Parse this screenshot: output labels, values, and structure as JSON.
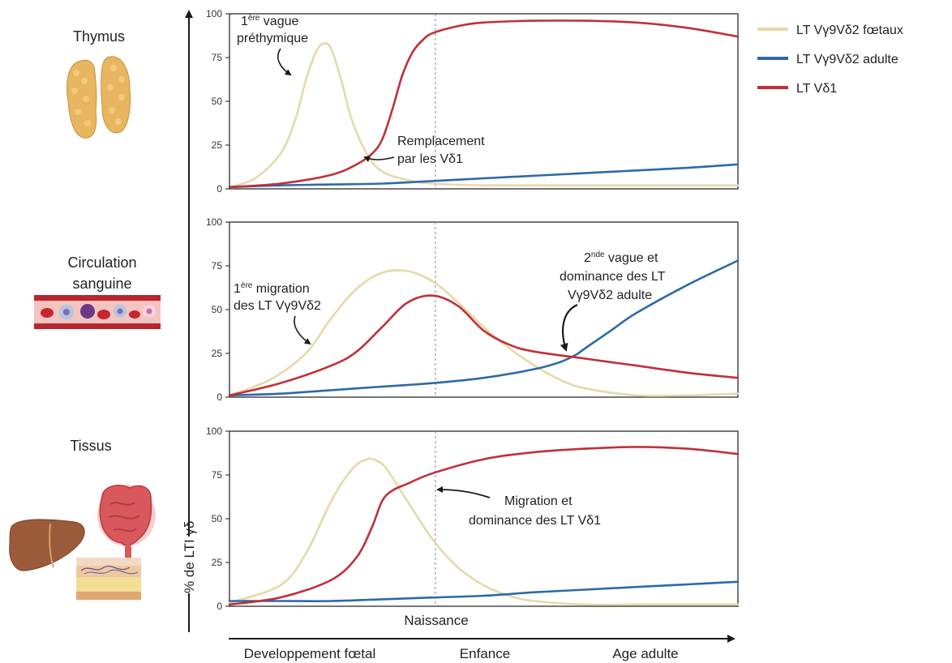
{
  "colors": {
    "foetal": "#e6d9a8",
    "adult": "#2d6aa8",
    "vd1": "#c0303a",
    "axis": "#1a1a1a",
    "arrow": "#1a1a1a"
  },
  "icons": [
    "thymus-icon",
    "blood-vessel-icon",
    "liver-icon",
    "intestine-icon",
    "skin-icon"
  ],
  "tissues": {
    "thymus": "Thymus",
    "blood_line1": "Circulation",
    "blood_line2": "sanguine",
    "tissue": "Tissus"
  },
  "legend": {
    "foetal": "LT Vγ9Vδ2 fœtaux",
    "adult": "LT Vγ9Vδ2 adulte",
    "vd1": "LT Vδ1"
  },
  "yaxis_label": "% de LTI γδ",
  "naissance": "Naissance",
  "stages": [
    "Developpement fœtal",
    "Enfance",
    "Age adulte"
  ],
  "annotations": {
    "p1_wave_sup": "ère",
    "p1_wave_pre": "1",
    "p1_wave_post": " vague",
    "p1_wave_line2": "préthymique",
    "p1_replace_line1": "Remplacement",
    "p1_replace_line2": "par les Vδ1",
    "p2_migr_pre": "1",
    "p2_migr_sup": "ère",
    "p2_migr_post": " migration",
    "p2_migr_line2": "des LT Vγ9Vδ2",
    "p2_second_pre": "2",
    "p2_second_sup": "nde",
    "p2_second_post": " vague et",
    "p2_second_line2": "dominance des LT",
    "p2_second_line3": "Vγ9Vδ2 adulte",
    "p3_migr_line1": "Migration et",
    "p3_migr_line2": "dominance des LT Vδ1"
  },
  "chart_data": [
    {
      "type": "line",
      "panel": "Thymus",
      "ylim": [
        0,
        100
      ],
      "yticks": [
        0,
        25,
        50,
        75,
        100
      ],
      "xlim": [
        0,
        100
      ],
      "series": [
        {
          "name": "LT Vγ9Vδ2 fœtaux",
          "color": "#e6d9a8",
          "x": [
            0,
            5,
            10,
            13,
            15,
            17,
            18.5,
            20,
            22,
            24,
            27,
            30,
            35,
            40,
            50,
            70,
            100
          ],
          "y": [
            1,
            6,
            20,
            40,
            62,
            78,
            83,
            80,
            62,
            40,
            20,
            10,
            5,
            3,
            2,
            2,
            2
          ]
        },
        {
          "name": "LT Vγ9Vδ2 adulte",
          "color": "#2d6aa8",
          "x": [
            0,
            10,
            20,
            30,
            40,
            50,
            60,
            70,
            80,
            90,
            100
          ],
          "y": [
            1,
            2,
            2.5,
            3,
            4.5,
            6,
            7.5,
            9,
            10.5,
            12,
            14
          ]
        },
        {
          "name": "LT Vδ1",
          "color": "#c0303a",
          "x": [
            0,
            10,
            20,
            25,
            28,
            30,
            32,
            34,
            36,
            38,
            40,
            45,
            50,
            60,
            70,
            80,
            90,
            100
          ],
          "y": [
            1,
            3,
            8,
            14,
            20,
            28,
            45,
            65,
            78,
            85,
            89,
            93,
            95,
            96,
            96,
            95,
            92,
            87
          ]
        }
      ]
    },
    {
      "type": "line",
      "panel": "Circulation sanguine",
      "ylim": [
        0,
        100
      ],
      "yticks": [
        0,
        25,
        50,
        75,
        100
      ],
      "xlim": [
        0,
        100
      ],
      "series": [
        {
          "name": "LT Vγ9Vδ2 fœtaux",
          "color": "#e6d9a8",
          "x": [
            0,
            8,
            15,
            20,
            25,
            30,
            35,
            40,
            45,
            50,
            55,
            60,
            65,
            70,
            80,
            90,
            100
          ],
          "y": [
            1,
            10,
            25,
            45,
            62,
            71,
            72,
            66,
            54,
            40,
            28,
            18,
            10,
            5,
            1,
            1,
            2
          ]
        },
        {
          "name": "LT Vγ9Vδ2 adulte",
          "color": "#2d6aa8",
          "x": [
            0,
            10,
            20,
            30,
            40,
            50,
            60,
            65,
            68,
            70,
            75,
            80,
            90,
            100
          ],
          "y": [
            1,
            2,
            4,
            6,
            8,
            11,
            16,
            20,
            24,
            28,
            38,
            48,
            64,
            78
          ]
        },
        {
          "name": "LT Vδ1",
          "color": "#c0303a",
          "x": [
            0,
            10,
            20,
            25,
            30,
            35,
            40,
            45,
            50,
            55,
            60,
            70,
            80,
            90,
            100
          ],
          "y": [
            1,
            8,
            18,
            26,
            40,
            54,
            58,
            52,
            38,
            30,
            26,
            22,
            18,
            14,
            11
          ]
        }
      ]
    },
    {
      "type": "line",
      "panel": "Tissus",
      "ylim": [
        0,
        100
      ],
      "yticks": [
        0,
        25,
        50,
        75,
        100
      ],
      "xlim": [
        0,
        100
      ],
      "series": [
        {
          "name": "LT Vγ9Vδ2 fœtaux",
          "color": "#e6d9a8",
          "x": [
            0,
            10,
            15,
            20,
            24,
            27,
            29,
            31,
            35,
            40,
            45,
            50,
            55,
            60,
            70,
            80,
            100
          ],
          "y": [
            2,
            12,
            30,
            60,
            78,
            84,
            83,
            78,
            60,
            38,
            22,
            12,
            6,
            3,
            1,
            1,
            1
          ]
        },
        {
          "name": "LT Vγ9Vδ2 adulte",
          "color": "#2d6aa8",
          "x": [
            0,
            10,
            20,
            30,
            40,
            50,
            60,
            70,
            80,
            90,
            100
          ],
          "y": [
            3,
            3,
            3,
            4,
            5,
            6,
            8,
            9.5,
            11,
            12.5,
            14
          ]
        },
        {
          "name": "LT Vδ1",
          "color": "#c0303a",
          "x": [
            0,
            10,
            20,
            25,
            28,
            30,
            32,
            35,
            40,
            50,
            60,
            70,
            80,
            90,
            100
          ],
          "y": [
            1,
            5,
            15,
            28,
            45,
            60,
            66,
            70,
            76,
            84,
            88,
            90,
            91,
            90,
            87
          ]
        }
      ]
    }
  ]
}
